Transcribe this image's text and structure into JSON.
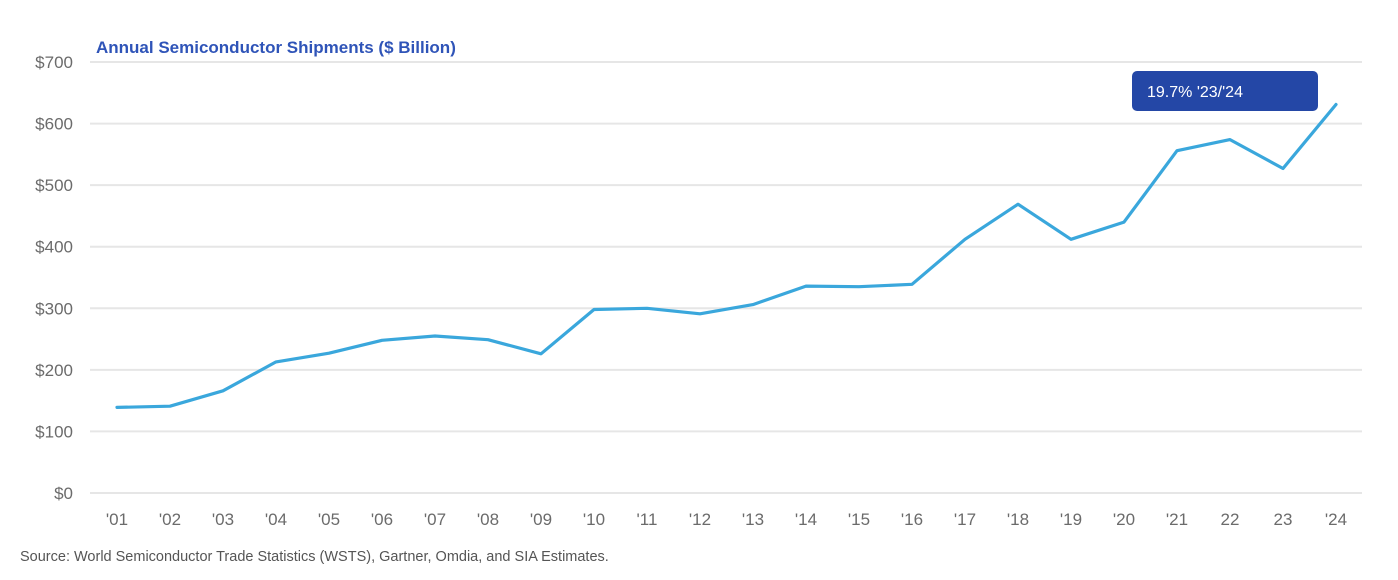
{
  "chart_data": {
    "type": "line",
    "title": "Annual Semiconductor Shipments ($ Billion)",
    "xlabel": "",
    "ylabel": "",
    "categories": [
      "'01",
      "'02",
      "'03",
      "'04",
      "'05",
      "'06",
      "'07",
      "'08",
      "'09",
      "'10",
      "'11",
      "'12",
      "'13",
      "'14",
      "'15",
      "'16",
      "'17",
      "'18",
      "'19",
      "'20",
      "'21",
      "22",
      "23",
      "'24"
    ],
    "series": [
      {
        "name": "Annual Semiconductor Shipments",
        "color": "#3aa7dc",
        "values": [
          139,
          141,
          166,
          213,
          227,
          248,
          255,
          249,
          226,
          298,
          300,
          291,
          306,
          336,
          335,
          339,
          412,
          469,
          412,
          440,
          556,
          574,
          527,
          631
        ]
      }
    ],
    "ylim": [
      0,
      700
    ],
    "yticks": [
      0,
      100,
      200,
      300,
      400,
      500,
      600,
      700
    ],
    "ytick_labels": [
      "$0",
      "$100",
      "$200",
      "$300",
      "$400",
      "$500",
      "$600",
      "$700"
    ],
    "grid": true,
    "annotation": {
      "text": "19.7% '23/'24",
      "color": "#2447a6"
    },
    "source": "Source: World Semiconductor Trade Statistics (WSTS), Gartner, Omdia, and SIA Estimates."
  }
}
